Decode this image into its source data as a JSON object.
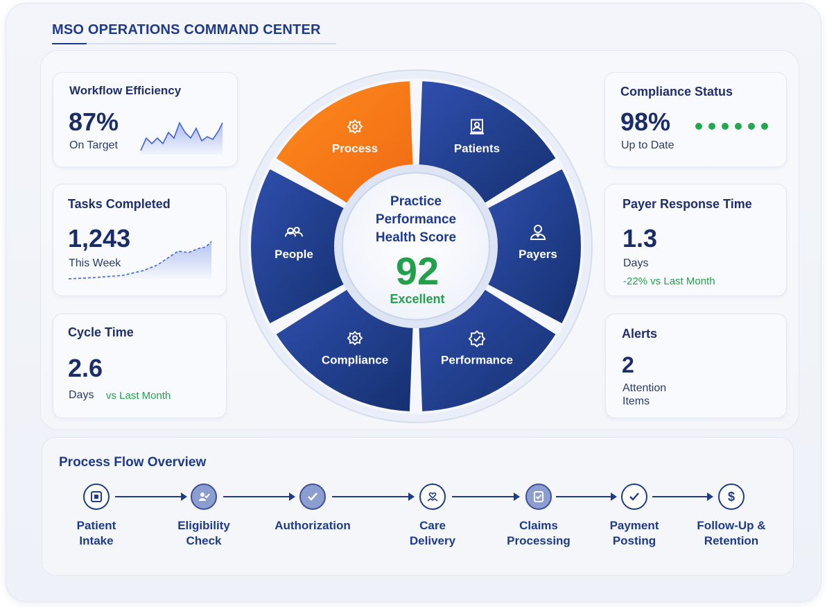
{
  "header": {
    "title": "MSO OPERATIONS COMMAND CENTER"
  },
  "colors": {
    "primary": "#1e3a8a",
    "accent": "#f57c1f",
    "success": "#22a84d"
  },
  "cards": {
    "workflow": {
      "title": "Workflow Efficiency",
      "value": "87%",
      "sub": "On Target"
    },
    "tasks": {
      "title": "Tasks Completed",
      "value": "1,243",
      "sub": "This Week"
    },
    "cycle": {
      "title": "Cycle Time",
      "value": "2.6",
      "sub": "Days",
      "delta": "vs Last Month"
    },
    "compliance": {
      "title": "Compliance Status",
      "value": "98%",
      "sub": "Up to Date"
    },
    "payer": {
      "title": "Payer Response Time",
      "value": "1.3",
      "sub": "Days",
      "delta": "-22% vs Last Month"
    },
    "alerts": {
      "title": "Alerts",
      "value": "2",
      "sub1": "Attention",
      "sub2": "Items"
    }
  },
  "wheel": {
    "center": {
      "line1": "Practice",
      "line2": "Performance",
      "line3": "Health Score",
      "score": "92",
      "rating": "Excellent"
    },
    "segments": [
      {
        "label": "People",
        "icon": "people-icon",
        "active": false
      },
      {
        "label": "Process",
        "icon": "gear-icon",
        "active": true
      },
      {
        "label": "Patients",
        "icon": "patient-icon",
        "active": false
      },
      {
        "label": "Payers",
        "icon": "payer-icon",
        "active": false
      },
      {
        "label": "Performance",
        "icon": "badge-icon",
        "active": false
      },
      {
        "label": "Compliance",
        "icon": "gear-icon",
        "active": false
      }
    ]
  },
  "flow": {
    "title": "Process Flow Overview",
    "steps": [
      {
        "line1": "Patient",
        "line2": "Intake",
        "icon": "intake-icon"
      },
      {
        "line1": "Eligibility",
        "line2": "Check",
        "icon": "eligibility-icon"
      },
      {
        "line1": "Authorization",
        "line2": "",
        "icon": "check-icon"
      },
      {
        "line1": "Care",
        "line2": "Delivery",
        "icon": "care-icon"
      },
      {
        "line1": "Claims",
        "line2": "Processing",
        "icon": "claims-icon"
      },
      {
        "line1": "Payment",
        "line2": "Posting",
        "icon": "check-circle-icon"
      },
      {
        "line1": "Follow-Up &",
        "line2": "Retention",
        "icon": "dollar-icon"
      }
    ]
  }
}
